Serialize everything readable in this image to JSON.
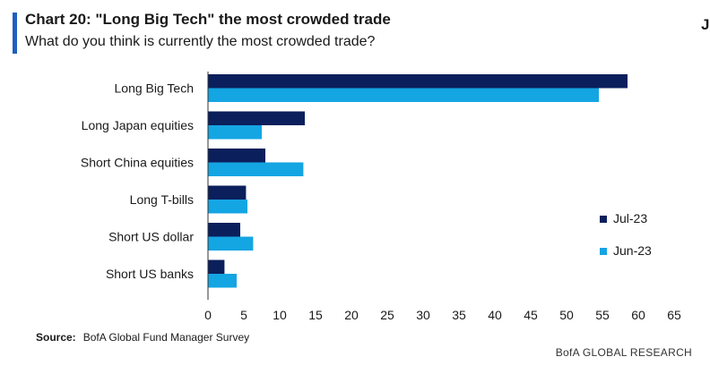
{
  "header": {
    "title": "Chart 20: \"Long Big Tech\" the most crowded trade",
    "subtitle": "What do you think is currently the most crowded trade?",
    "corner_mark": "J"
  },
  "source": {
    "label": "Source:",
    "text": "BofA Global Fund Manager Survey"
  },
  "footer": {
    "brand": "BofA GLOBAL RESEARCH"
  },
  "colors": {
    "accent": "#1f5fbf",
    "jul": "#0b1f5c",
    "jun": "#14a5e3"
  },
  "chart_data": {
    "type": "bar",
    "orientation": "horizontal",
    "categories": [
      "Long Big Tech",
      "Long Japan equities",
      "Short China equities",
      "Long T-bills",
      "Short US dollar",
      "Short US banks"
    ],
    "series": [
      {
        "name": "Jul-23",
        "values": [
          58.5,
          13.5,
          8,
          5.3,
          4.5,
          2.3
        ]
      },
      {
        "name": "Jun-23",
        "values": [
          54.5,
          7.5,
          13.3,
          5.5,
          6.3,
          4
        ]
      }
    ],
    "xlim": [
      0,
      65
    ],
    "xticks": [
      "0",
      "5",
      "10",
      "15",
      "20",
      "25",
      "30",
      "35",
      "40",
      "45",
      "50",
      "55",
      "60",
      "65"
    ],
    "grid": false,
    "legend_position": "right"
  }
}
